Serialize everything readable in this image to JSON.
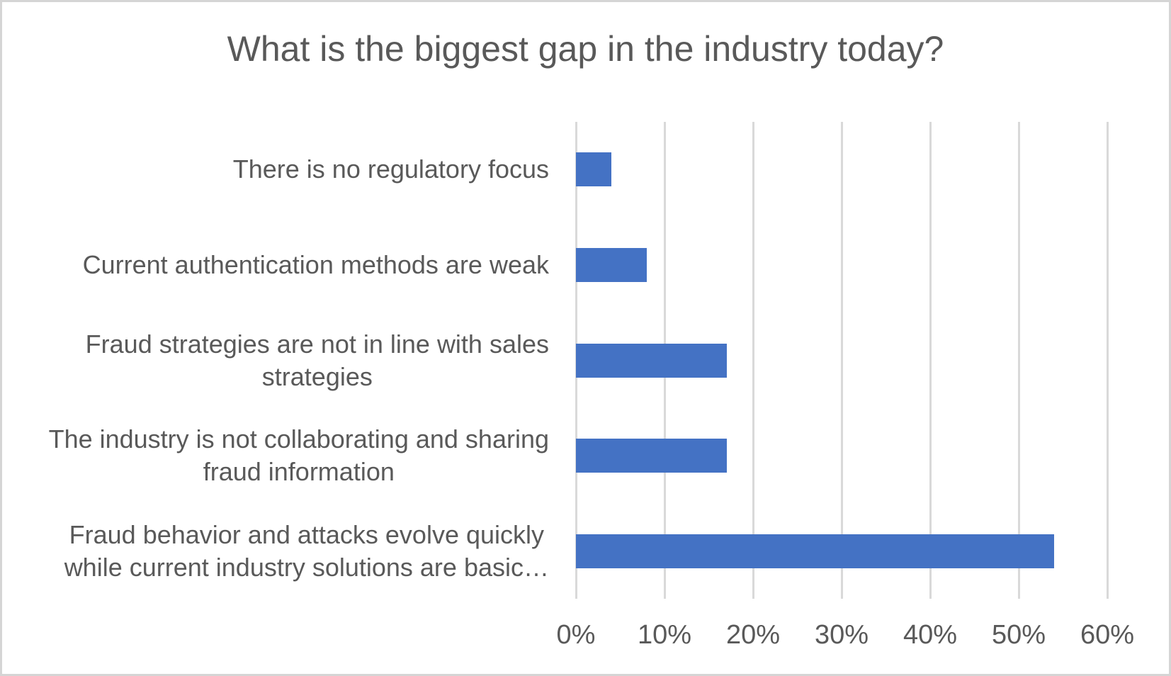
{
  "chart_data": {
    "type": "bar",
    "orientation": "horizontal",
    "title": "What is the biggest gap in the industry today?",
    "categories": [
      {
        "label": "There is no regulatory focus",
        "lines": [
          "There is no regulatory focus"
        ],
        "value": 4
      },
      {
        "label": "Current authentication methods are weak",
        "lines": [
          "Current authentication methods are weak"
        ],
        "value": 8
      },
      {
        "label": "Fraud strategies are not in line with sales strategies",
        "lines": [
          "Fraud strategies are not in line with sales",
          "strategies"
        ],
        "value": 17
      },
      {
        "label": "The industry is not collaborating and sharing fraud information",
        "lines": [
          "The industry is not collaborating and sharing",
          "fraud information"
        ],
        "value": 17
      },
      {
        "label": "Fraud behavior and attacks evolve quickly while current industry solutions are basic…",
        "lines": [
          "Fraud behavior and attacks evolve quickly",
          "while current industry solutions are basic…"
        ],
        "value": 54
      }
    ],
    "unit": "%",
    "xlabel": "",
    "ylabel": "",
    "xlim": [
      0,
      60
    ],
    "x_ticks": [
      0,
      10,
      20,
      30,
      40,
      50,
      60
    ],
    "x_tick_labels": [
      "0%",
      "10%",
      "20%",
      "30%",
      "40%",
      "50%",
      "60%"
    ],
    "grid": "vertical-only",
    "legend": "none",
    "colors": {
      "bar": "#4472c4",
      "gridline": "#d9d9d9",
      "text": "#595959",
      "background": "#ffffff",
      "frame_border": "#d5d5d5"
    }
  }
}
